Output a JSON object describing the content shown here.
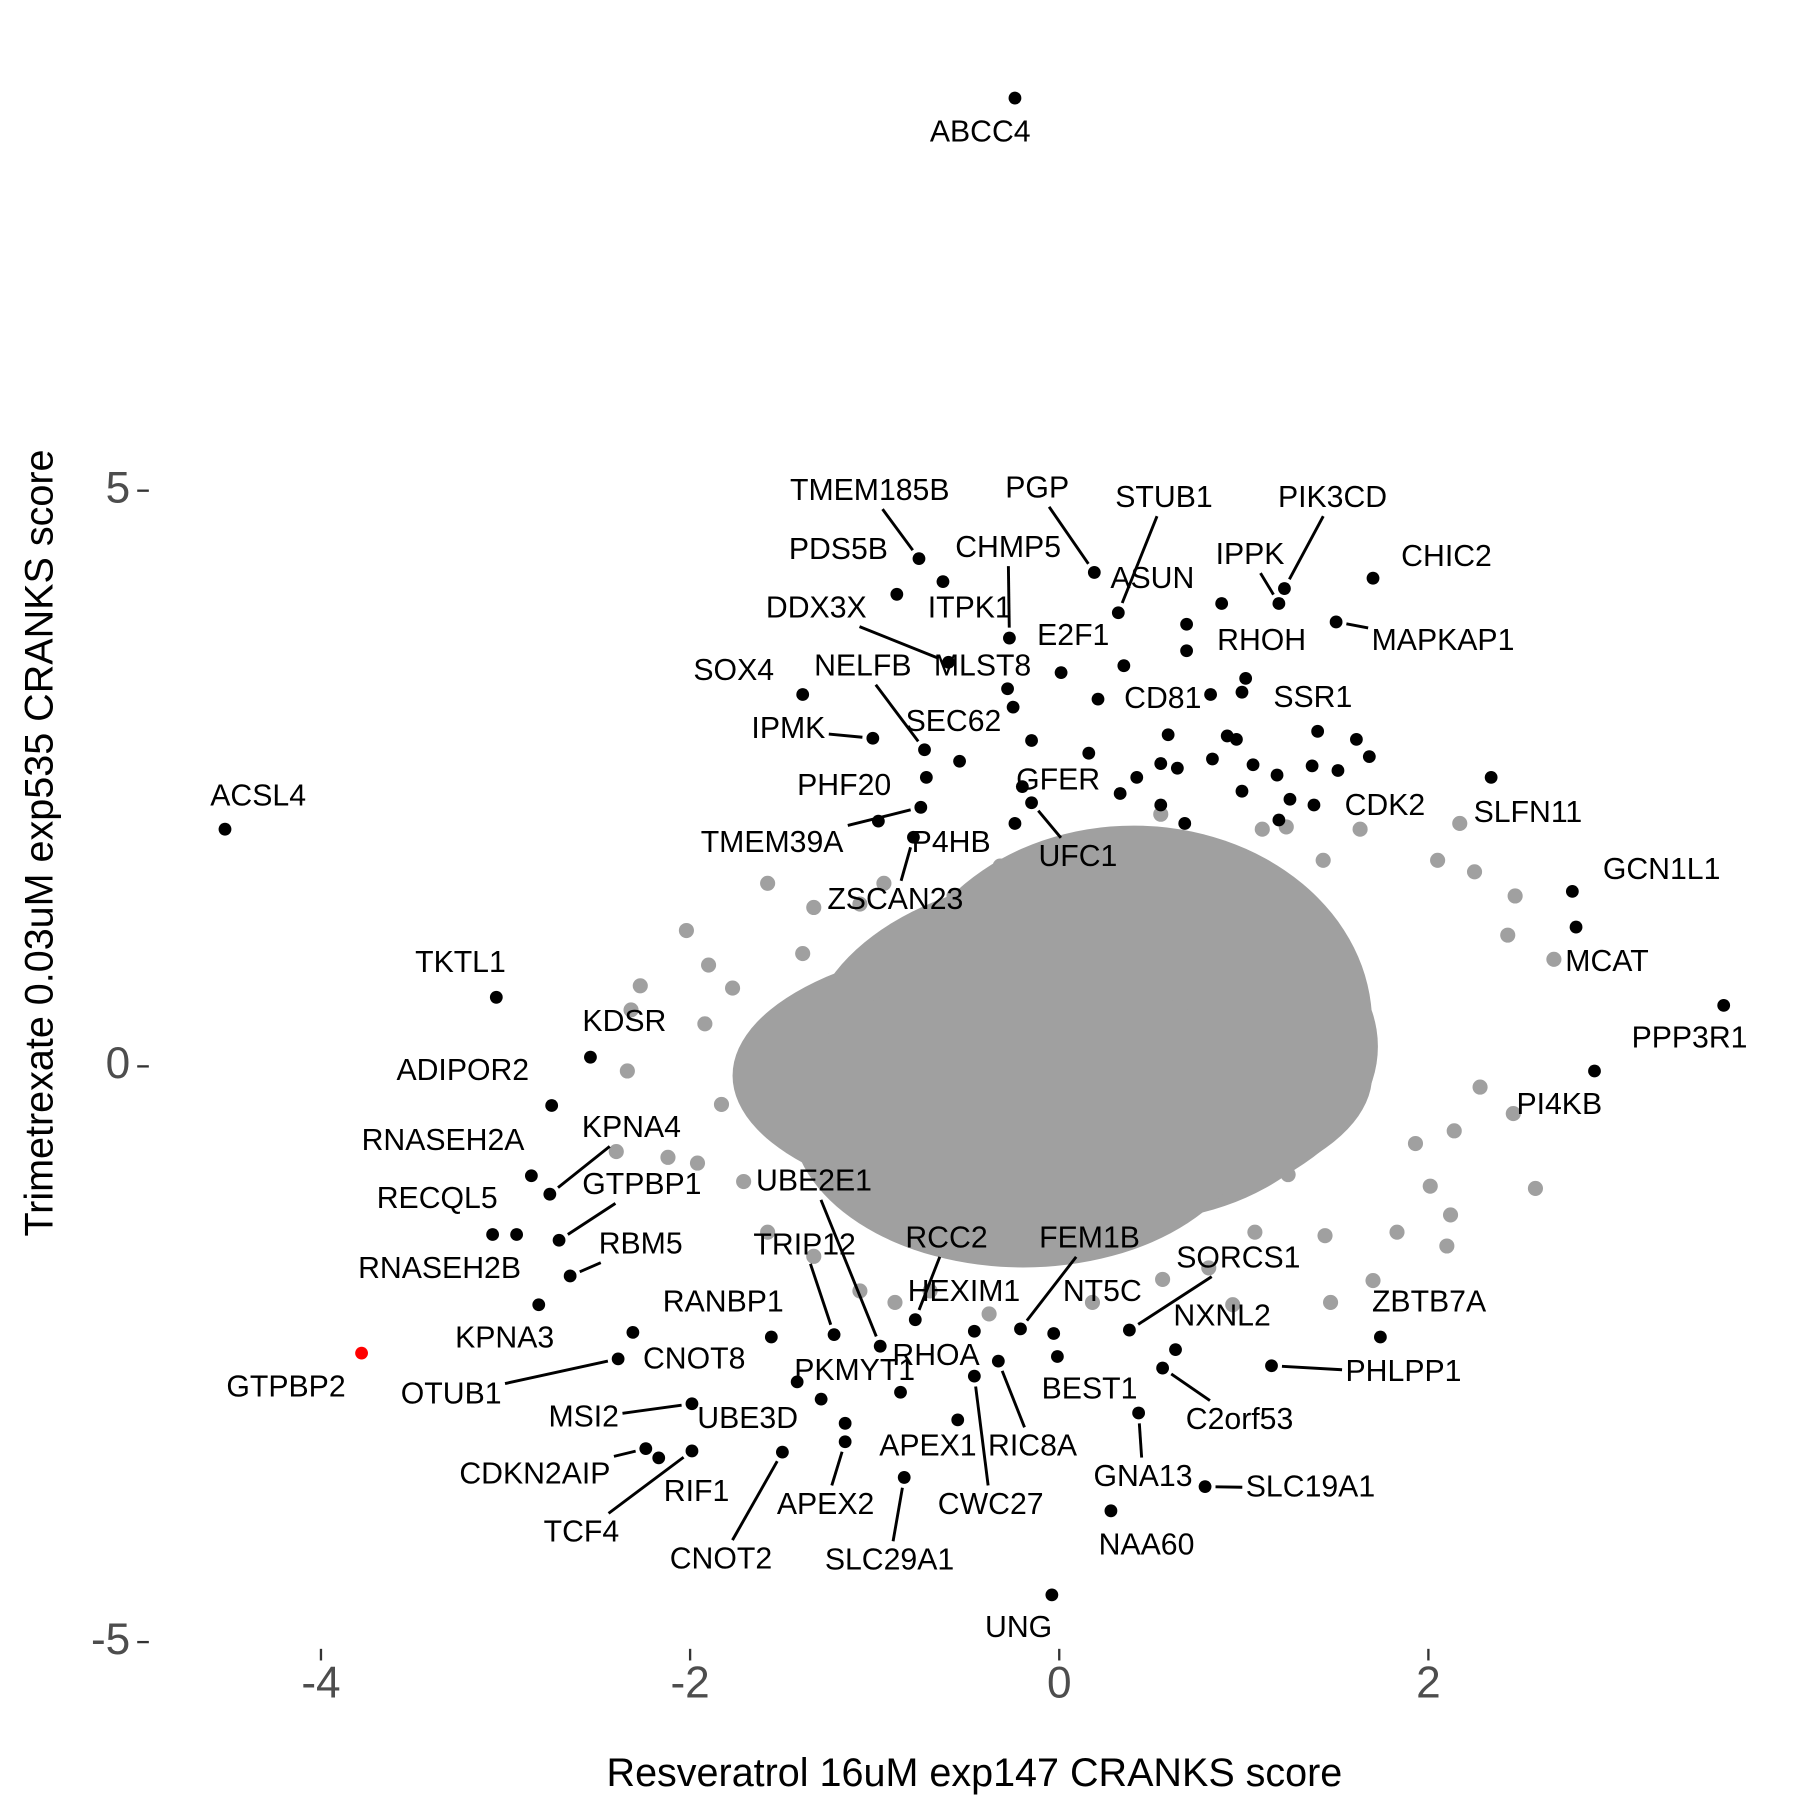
{
  "chart_data": {
    "type": "scatter",
    "xlabel": "Resveratrol 16uM exp147 CRANKS score",
    "ylabel": "Trimetrexate 0.03uM exp535 CRANKS score",
    "xlim": [
      -4.92,
      3.9
    ],
    "ylim": [
      -5.2,
      9.1
    ],
    "xticks": [
      -4,
      -2,
      0,
      2
    ],
    "yticks": [
      -5,
      0,
      5
    ],
    "grid": false,
    "series": [
      {
        "color": "#a0a0a0",
        "x": [
          -2.27,
          -2.32,
          -2.4,
          -2.12,
          -2.34,
          2.58,
          2.46,
          2.43,
          2.28,
          2.14,
          2.17,
          2.05,
          2.25,
          2.47,
          2.68,
          2.12,
          2.1,
          2.01,
          1.93,
          1.83,
          1.44,
          1.7,
          1.47,
          1.24,
          0.94,
          1.23,
          1.43,
          1.63,
          1.1,
          0.94,
          0.55,
          0.34,
          0.18,
          -0.32,
          -0.57,
          -0.95,
          -1.08,
          -1.33,
          -1.58,
          -1.39,
          -1.77,
          -1.9,
          -2.02,
          -1.92,
          -1.83,
          -1.96,
          -1.71,
          -1.58,
          -1.33,
          -1.08,
          -0.89,
          -0.7,
          -0.38,
          0.18,
          0.56,
          0.81,
          1.06
        ],
        "values": [
          0.7,
          0.49,
          -0.74,
          -0.79,
          -0.04,
          -1.06,
          -0.41,
          1.14,
          -0.18,
          -0.56,
          2.11,
          1.79,
          1.69,
          1.48,
          0.93,
          -1.29,
          -1.56,
          -1.04,
          -0.67,
          -1.44,
          -1.47,
          -1.86,
          -2.05,
          -0.94,
          -2.07,
          2.08,
          1.79,
          2.06,
          2.06,
          1.79,
          2.19,
          1.97,
          1.89,
          1.74,
          1.48,
          1.59,
          1.41,
          1.38,
          1.59,
          0.98,
          0.68,
          0.88,
          1.18,
          0.37,
          -0.33,
          -0.84,
          -1.0,
          -1.44,
          -1.65,
          -1.95,
          -2.05,
          -1.95,
          -2.15,
          -2.05,
          -1.85,
          -1.75,
          -1.44
        ]
      },
      {
        "color": "#000000",
        "x": [
          0.88,
          0.99,
          1.01,
          0.82,
          0.91,
          0.96,
          0.59,
          0.64,
          0.55,
          0.55,
          0.68,
          0.83,
          0.99,
          1.05,
          1.18,
          1.19,
          1.25,
          1.51,
          1.61,
          1.68,
          1.37,
          0.33,
          0.16,
          0.42,
          -0.15,
          -0.25,
          -0.72,
          0.35,
          -1.16
        ],
        "values": [
          4.02,
          3.25,
          3.37,
          3.23,
          2.87,
          2.84,
          2.88,
          2.59,
          2.63,
          2.27,
          2.11,
          2.67,
          2.39,
          2.62,
          2.53,
          2.14,
          2.32,
          2.57,
          2.84,
          2.69,
          2.61,
          2.37,
          2.72,
          2.51,
          2.83,
          3.12,
          2.51,
          3.48,
          -3.1
        ]
      },
      {
        "color": "#000000",
        "labels": [
          "ABCC4",
          "ACSL4",
          "TKTL1",
          "KDSR",
          "ADIPOR2",
          "RNASEH2A",
          "KPNA4",
          "GTPBP1",
          "RECQL5",
          "RNASEH2B",
          "RBM5",
          "KPNA3",
          "CNOT8",
          "OTUB1",
          "MSI2",
          "CDKN2AIP",
          "RIF1",
          "TCF4",
          "UBE3D",
          "CNOT2",
          "APEX2",
          "PKMYT1",
          "RANBP1",
          "UBE2E1",
          "TRIP12",
          "RCC2",
          "HEXIM1",
          "RHOA",
          "APEX1",
          "RIC8A",
          "CWC27",
          "SLC29A1",
          "FEM1B",
          "NT5C",
          "BEST1",
          "SORCS1",
          "NXNL2",
          "C2orf53",
          "GNA13",
          "NAA60",
          "SLC19A1",
          "UNG",
          "PHLPP1",
          "ZBTB7A",
          "PPP3R1",
          "PI4KB",
          "MCAT",
          "GCN1L1",
          "SLFN11",
          "CDK2",
          "CHIC2",
          "MAPKAP1",
          "PIK3CD",
          "IPPK",
          "SSR1",
          "RHOH",
          "CD81",
          "STUB1",
          "ASUN",
          "PGP",
          "E2F1",
          "CHMP5",
          "ITPK1",
          "TMEM185B",
          "PDS5B",
          "DDX3X",
          "MLST8",
          "NELFB",
          "SEC62",
          "SOX4",
          "IPMK",
          "PHF20",
          "GFER",
          "TMEM39A",
          "P4HB",
          "UFC1",
          "ZSCAN23"
        ],
        "x": [
          -0.24,
          -4.52,
          -3.05,
          -2.54,
          -2.75,
          -2.86,
          -2.76,
          -2.71,
          -3.07,
          -2.94,
          -2.65,
          -2.82,
          -2.31,
          -2.39,
          -1.99,
          -2.24,
          -2.17,
          -1.99,
          -1.29,
          -1.5,
          -1.16,
          -1.42,
          -1.56,
          -0.97,
          -1.22,
          -0.78,
          -0.46,
          -0.86,
          -0.55,
          -0.33,
          -0.46,
          -0.84,
          -0.21,
          -0.03,
          -0.01,
          0.38,
          0.63,
          0.56,
          0.43,
          0.28,
          0.79,
          -0.04,
          1.15,
          1.74,
          3.6,
          2.9,
          2.8,
          2.78,
          2.34,
          1.38,
          1.7,
          1.5,
          1.22,
          1.19,
          1.4,
          0.69,
          0.21,
          0.32,
          0.69,
          0.19,
          0.01,
          -0.27,
          -0.63,
          -0.76,
          -0.88,
          -0.6,
          -0.28,
          -0.73,
          -0.54,
          -1.39,
          -1.01,
          -0.98,
          -0.2,
          -0.75,
          -0.24,
          -0.15,
          -0.79
        ],
        "values": [
          8.41,
          2.06,
          0.6,
          0.08,
          -0.34,
          -0.95,
          -1.11,
          -1.51,
          -1.46,
          -1.46,
          -1.82,
          -2.07,
          -2.31,
          -2.54,
          -2.93,
          -3.32,
          -3.4,
          -3.34,
          -2.89,
          -3.35,
          -3.26,
          -2.74,
          -2.35,
          -2.43,
          -2.33,
          -2.2,
          -2.3,
          -2.83,
          -3.07,
          -2.56,
          -2.69,
          -3.57,
          -2.28,
          -2.32,
          -2.52,
          -2.29,
          -2.46,
          -2.62,
          -3.01,
          -3.86,
          -3.65,
          -4.59,
          -2.6,
          -2.35,
          0.53,
          -0.04,
          1.21,
          1.52,
          2.51,
          2.27,
          4.24,
          3.86,
          4.15,
          4.02,
          2.91,
          3.61,
          3.19,
          3.94,
          3.84,
          4.29,
          3.42,
          3.72,
          4.21,
          4.41,
          4.1,
          3.51,
          3.28,
          2.75,
          2.65,
          3.23,
          2.85,
          2.13,
          2.43,
          2.25,
          2.11,
          2.29,
          1.99
        ]
      },
      {
        "color": "#ff0000",
        "labels": [
          "GTPBP2"
        ],
        "x": [
          -3.78
        ],
        "values": [
          -2.49
        ]
      }
    ]
  }
}
